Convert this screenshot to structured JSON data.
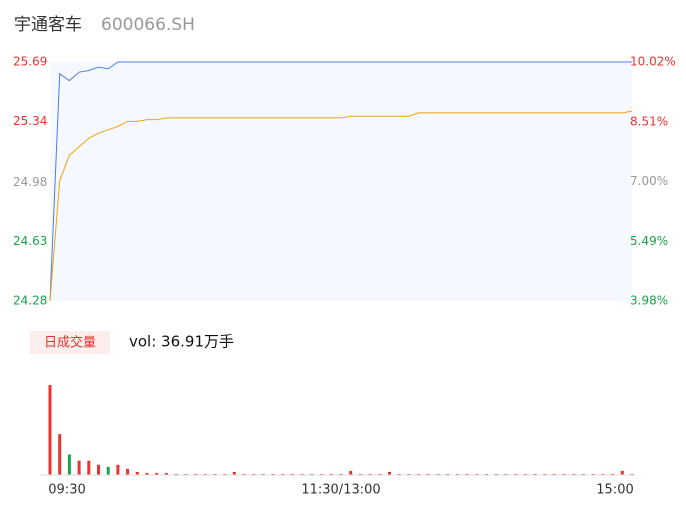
{
  "chart_data": {
    "type": "line",
    "title": "宇通客车",
    "subtitle": "600066.SH",
    "categories": [
      "09:30",
      null,
      null,
      null,
      null,
      null,
      null,
      null,
      null,
      null,
      null,
      null,
      null,
      null,
      null,
      null,
      null,
      null,
      null,
      null,
      null,
      null,
      null,
      null,
      null,
      null,
      null,
      null,
      null,
      null,
      "11:30/13:00",
      null,
      null,
      null,
      null,
      null,
      null,
      null,
      null,
      null,
      null,
      null,
      null,
      null,
      null,
      null,
      null,
      null,
      null,
      null,
      null,
      null,
      null,
      null,
      null,
      null,
      null,
      null,
      null,
      null,
      "15:00"
    ],
    "series": [
      {
        "name": "price",
        "color": "#4a7fe0",
        "values": [
          24.28,
          25.62,
          25.58,
          25.63,
          25.64,
          25.66,
          25.65,
          25.69,
          25.69,
          25.69,
          25.69,
          25.69,
          25.69,
          25.69,
          25.69,
          25.69,
          25.69,
          25.69,
          25.69,
          25.69,
          25.69,
          25.69,
          25.69,
          25.69,
          25.69,
          25.69,
          25.69,
          25.69,
          25.69,
          25.69,
          25.69,
          25.69,
          25.69,
          25.69,
          25.69,
          25.69,
          25.69,
          25.69,
          25.69,
          25.69,
          25.69,
          25.69,
          25.69,
          25.69,
          25.69,
          25.69,
          25.69,
          25.69,
          25.69,
          25.69,
          25.69,
          25.69,
          25.69,
          25.69,
          25.69,
          25.69,
          25.69,
          25.69,
          25.69,
          25.69,
          25.69
        ]
      },
      {
        "name": "average",
        "color": "#f0a30a",
        "values": [
          24.28,
          24.99,
          25.14,
          25.19,
          25.24,
          25.27,
          25.29,
          25.31,
          25.34,
          25.34,
          25.35,
          25.35,
          25.36,
          25.36,
          25.36,
          25.36,
          25.36,
          25.36,
          25.36,
          25.36,
          25.36,
          25.36,
          25.36,
          25.36,
          25.36,
          25.36,
          25.36,
          25.36,
          25.36,
          25.36,
          25.36,
          25.37,
          25.37,
          25.37,
          25.37,
          25.37,
          25.37,
          25.37,
          25.39,
          25.39,
          25.39,
          25.39,
          25.39,
          25.39,
          25.39,
          25.39,
          25.39,
          25.39,
          25.39,
          25.39,
          25.39,
          25.39,
          25.39,
          25.39,
          25.39,
          25.39,
          25.39,
          25.39,
          25.39,
          25.39,
          25.4
        ]
      }
    ],
    "ylim": [
      24.28,
      25.69
    ],
    "yticks": [
      25.69,
      25.34,
      24.98,
      24.63,
      24.28
    ],
    "y2lim": [
      3.98,
      10.02
    ],
    "y2ticks": [
      {
        "value": 10.02,
        "label": "10.02%"
      },
      {
        "value": 8.51,
        "label": "8.51%"
      },
      {
        "value": 7.0,
        "label": "7.00%"
      },
      {
        "value": 5.49,
        "label": "5.49%"
      },
      {
        "value": 3.98,
        "label": "3.98%"
      }
    ],
    "up_color": "#e8332f",
    "flat_color": "#999999",
    "down_color": "#1aa34a",
    "volume": {
      "name": "日成交量",
      "label": "vol: 36.91万手",
      "values": [
        88,
        40,
        20,
        14,
        14,
        10,
        8,
        10,
        6,
        3,
        2,
        2,
        2,
        1,
        1,
        1,
        1,
        1,
        1,
        3,
        1,
        1,
        1,
        1,
        1,
        1,
        1,
        1,
        1,
        1,
        1,
        4,
        1,
        1,
        1,
        3,
        1,
        1,
        1,
        1,
        1,
        1,
        1,
        1,
        1,
        1,
        1,
        1,
        1,
        1,
        1,
        1,
        1,
        1,
        1,
        1,
        1,
        1,
        1,
        4,
        1
      ]
    }
  }
}
